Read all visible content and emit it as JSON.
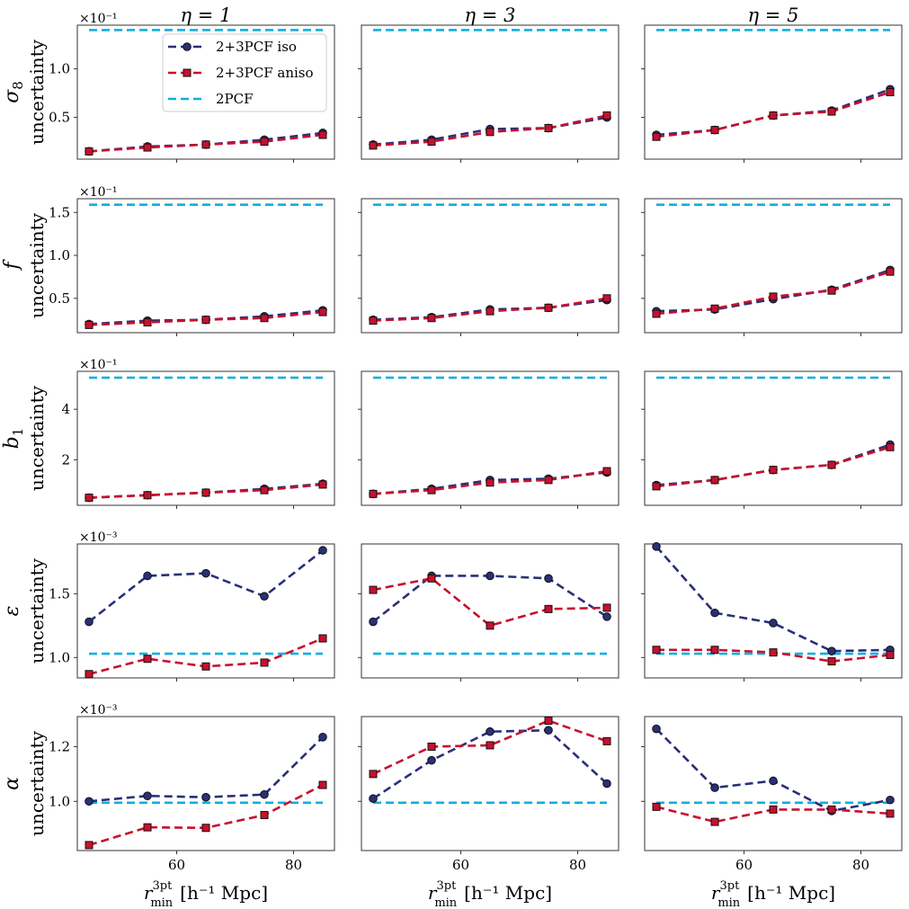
{
  "figure": {
    "col_titles": [
      "η = 1",
      "η = 3",
      "η = 5"
    ],
    "x_label_sym": "r",
    "x_label_sup": "3pt",
    "x_label_sub": "min",
    "x_label_units": "[h⁻¹ Mpc]",
    "y_unit_word": "uncertainty"
  },
  "legend": [
    {
      "label": "2+3PCF iso",
      "color": "#283078",
      "marker": "circle"
    },
    {
      "label": "2+3PCF aniso",
      "color": "#c8102e",
      "marker": "square"
    },
    {
      "label": "2PCF",
      "color": "#11aee0",
      "marker": "none"
    }
  ],
  "chart_data": {
    "type": "line",
    "x": [
      45,
      55,
      65,
      75,
      85
    ],
    "xlim": [
      43,
      87
    ],
    "x_ticks": [
      60,
      80
    ],
    "rows": [
      {
        "param": "σ8",
        "scale": "×10⁻¹",
        "ylim": [
          0.07,
          1.45
        ],
        "y_ticks": [
          0.5,
          1.0
        ],
        "y_tick_labels": [
          "0.5",
          "1.0"
        ],
        "panels": [
          {
            "iso": [
              0.15,
              0.2,
              0.22,
              0.27,
              0.34
            ],
            "aniso": [
              0.15,
              0.19,
              0.22,
              0.25,
              0.32
            ],
            "twopcf": 1.4
          },
          {
            "iso": [
              0.22,
              0.27,
              0.38,
              0.39,
              0.5
            ],
            "aniso": [
              0.21,
              0.25,
              0.35,
              0.39,
              0.52
            ],
            "twopcf": 1.4
          },
          {
            "iso": [
              0.32,
              0.37,
              0.52,
              0.57,
              0.79
            ],
            "aniso": [
              0.3,
              0.37,
              0.52,
              0.56,
              0.76
            ],
            "twopcf": 1.4
          }
        ]
      },
      {
        "param": "f",
        "scale": "×10⁻¹",
        "ylim": [
          0.1,
          1.66
        ],
        "y_ticks": [
          0.5,
          1.0,
          1.5
        ],
        "y_tick_labels": [
          "0.5",
          "1.0",
          "1.5"
        ],
        "panels": [
          {
            "iso": [
              0.2,
              0.24,
              0.25,
              0.29,
              0.36
            ],
            "aniso": [
              0.19,
              0.22,
              0.25,
              0.27,
              0.34
            ],
            "twopcf": 1.59
          },
          {
            "iso": [
              0.25,
              0.28,
              0.37,
              0.39,
              0.48
            ],
            "aniso": [
              0.24,
              0.27,
              0.35,
              0.39,
              0.5
            ],
            "twopcf": 1.59
          },
          {
            "iso": [
              0.35,
              0.37,
              0.49,
              0.6,
              0.83
            ],
            "aniso": [
              0.32,
              0.38,
              0.52,
              0.59,
              0.81
            ],
            "twopcf": 1.59
          }
        ]
      },
      {
        "param": "b1",
        "scale": "×10⁻¹",
        "ylim": [
          0.2,
          5.5
        ],
        "y_ticks": [
          2,
          4
        ],
        "y_tick_labels": [
          "2",
          "4"
        ],
        "panels": [
          {
            "iso": [
              0.5,
              0.6,
              0.7,
              0.85,
              1.05
            ],
            "aniso": [
              0.5,
              0.6,
              0.7,
              0.8,
              1.02
            ],
            "twopcf": 5.25
          },
          {
            "iso": [
              0.65,
              0.85,
              1.2,
              1.25,
              1.5
            ],
            "aniso": [
              0.65,
              0.8,
              1.1,
              1.2,
              1.55
            ],
            "twopcf": 5.25
          },
          {
            "iso": [
              1.0,
              1.2,
              1.6,
              1.8,
              2.6
            ],
            "aniso": [
              0.95,
              1.2,
              1.6,
              1.8,
              2.5
            ],
            "twopcf": 5.25
          }
        ]
      },
      {
        "param": "ε",
        "scale": "×10⁻³",
        "ylim": [
          0.84,
          1.89
        ],
        "y_ticks": [
          1.0,
          1.5
        ],
        "y_tick_labels": [
          "1.0",
          "1.5"
        ],
        "panels": [
          {
            "iso": [
              1.28,
              1.64,
              1.66,
              1.48,
              1.84
            ],
            "aniso": [
              0.87,
              0.99,
              0.93,
              0.96,
              1.15
            ],
            "twopcf": 1.03
          },
          {
            "iso": [
              1.28,
              1.64,
              1.64,
              1.62,
              1.32
            ],
            "aniso": [
              1.53,
              1.62,
              1.25,
              1.38,
              1.39
            ],
            "twopcf": 1.03
          },
          {
            "iso": [
              1.87,
              1.35,
              1.27,
              1.05,
              1.06
            ],
            "aniso": [
              1.06,
              1.06,
              1.04,
              0.97,
              1.02
            ],
            "twopcf": 1.03
          }
        ]
      },
      {
        "param": "α",
        "scale": "×10⁻³",
        "ylim": [
          0.82,
          1.31
        ],
        "y_ticks": [
          1.0,
          1.2
        ],
        "y_tick_labels": [
          "1.0",
          "1.2"
        ],
        "panels": [
          {
            "iso": [
              1.0,
              1.02,
              1.015,
              1.025,
              1.235
            ],
            "aniso": [
              0.84,
              0.905,
              0.903,
              0.95,
              1.06
            ],
            "twopcf": 0.995
          },
          {
            "iso": [
              1.01,
              1.15,
              1.255,
              1.26,
              1.065
            ],
            "aniso": [
              1.1,
              1.2,
              1.205,
              1.295,
              1.22
            ],
            "twopcf": 0.995
          },
          {
            "iso": [
              1.265,
              1.05,
              1.075,
              0.965,
              1.005
            ],
            "aniso": [
              0.98,
              0.925,
              0.97,
              0.97,
              0.955
            ],
            "twopcf": 0.995
          }
        ]
      }
    ]
  }
}
